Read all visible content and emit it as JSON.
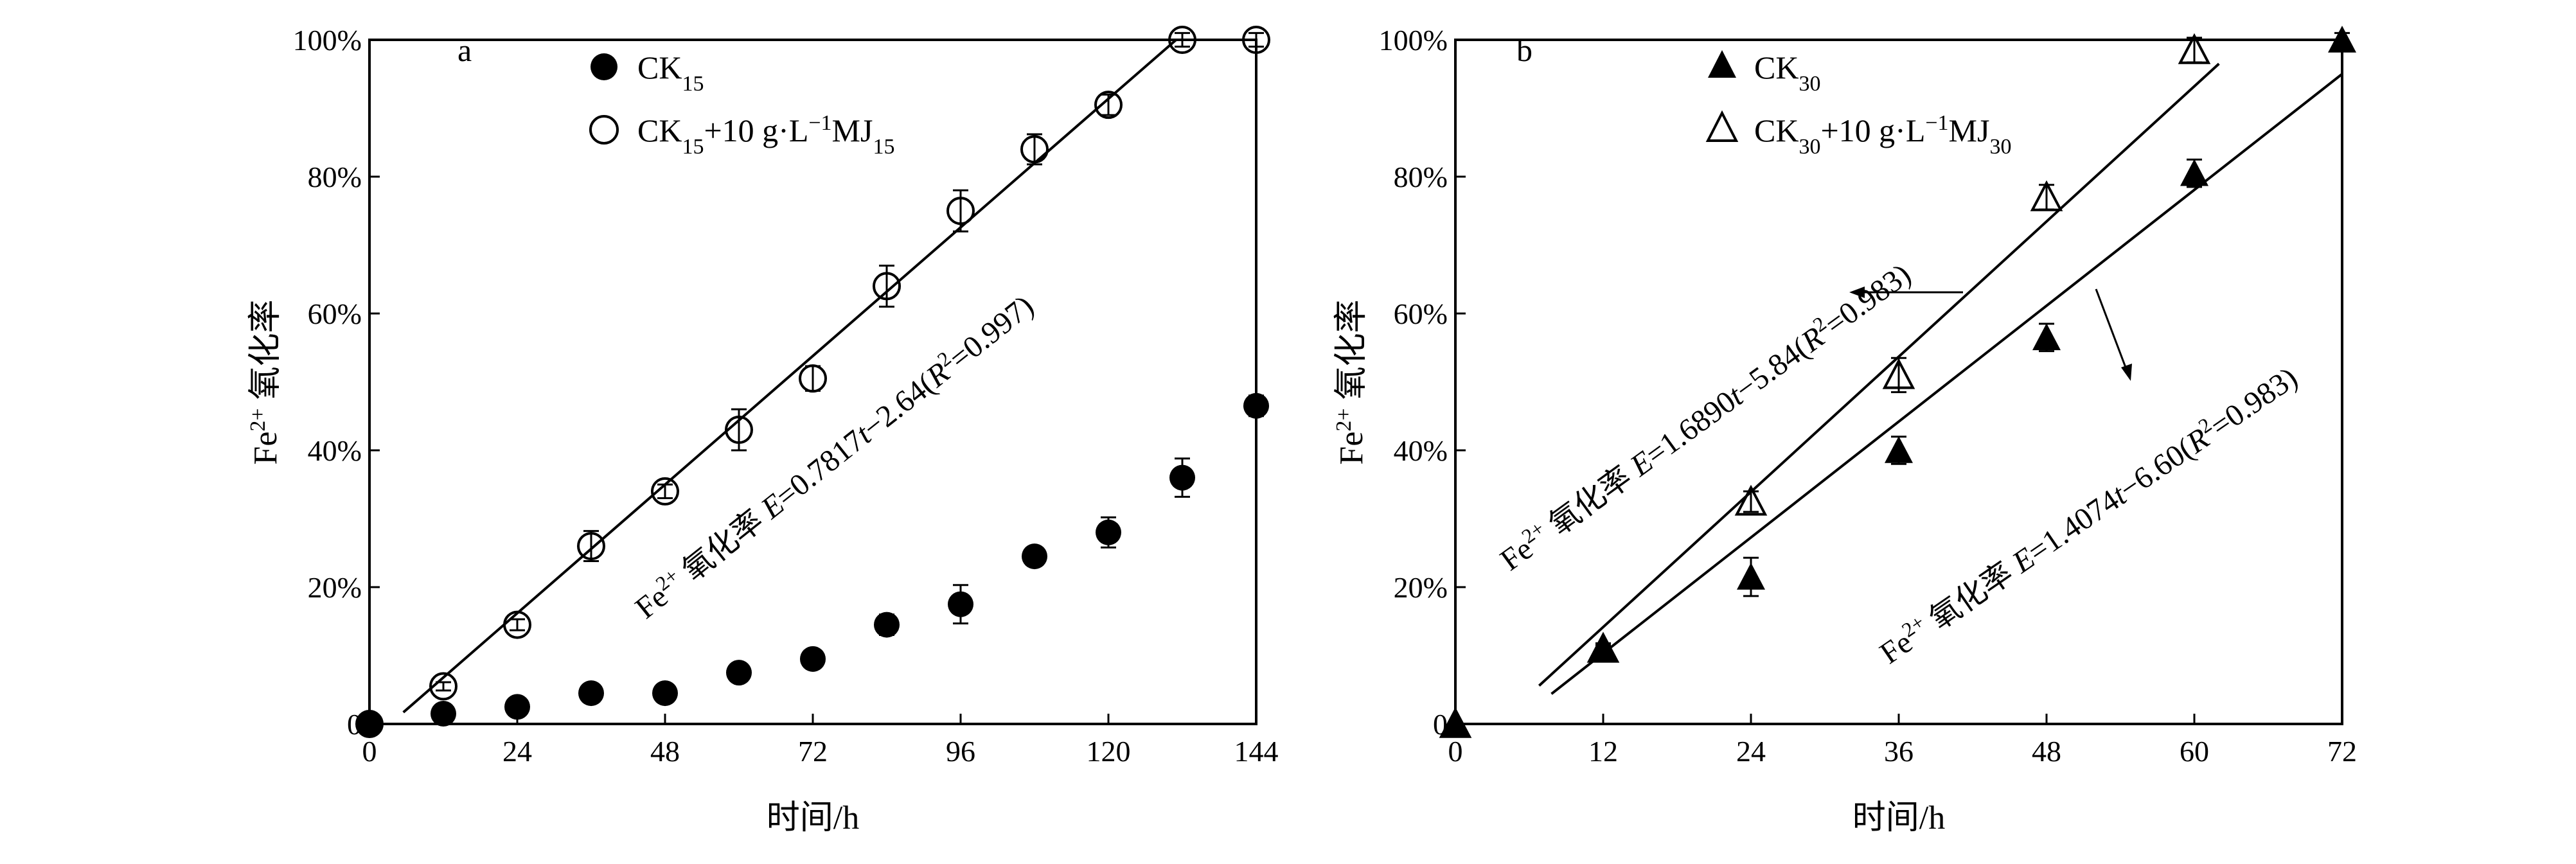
{
  "chart_data": [
    {
      "type": "scatter",
      "panel_label": "a",
      "xlabel": "时间/h",
      "ylabel": {
        "base": "Fe",
        "sup": "2+",
        "rest": " 氧化率"
      },
      "xlim": [
        0,
        144
      ],
      "ylim": [
        0,
        100
      ],
      "xticks": [
        "0",
        "24",
        "48",
        "72",
        "96",
        "120",
        "144"
      ],
      "xtick_values": [
        0,
        24,
        48,
        72,
        96,
        120,
        144
      ],
      "yticks": [
        "0",
        "20%",
        "40%",
        "60%",
        "80%",
        "100%"
      ],
      "ytick_values": [
        0,
        20,
        40,
        60,
        80,
        100
      ],
      "grid": false,
      "legend_position": "top-center",
      "series": [
        {
          "legend": {
            "base": "CK",
            "sub": "15",
            "rest": ""
          },
          "marker": "filled-circle",
          "x": [
            0,
            12,
            24,
            36,
            48,
            60,
            72,
            84,
            96,
            108,
            120,
            132,
            144
          ],
          "y": [
            0,
            1.5,
            2.5,
            4.5,
            4.5,
            7.5,
            9.5,
            14.5,
            17.5,
            24.5,
            28,
            36,
            46.5
          ],
          "err": [
            0,
            0.5,
            0.5,
            0.6,
            0.6,
            0.8,
            0.8,
            1.5,
            2.8,
            0.8,
            2.2,
            2.8,
            1.5
          ]
        },
        {
          "legend": {
            "base": "CK",
            "sub": "15",
            "rest": "+10 g·L",
            "sup": "−1",
            "rest2": "MJ",
            "sub2": "15"
          },
          "marker": "open-circle",
          "x": [
            0,
            12,
            24,
            36,
            48,
            60,
            72,
            84,
            96,
            108,
            120,
            132,
            144
          ],
          "y": [
            0,
            5.5,
            14.5,
            26,
            34,
            43,
            50.5,
            64,
            75,
            84,
            90.5,
            100,
            100
          ],
          "err": [
            0,
            0.6,
            0.8,
            2.2,
            1.0,
            3.0,
            1.8,
            3.0,
            3.0,
            2.2,
            1.5,
            1.0,
            1.0
          ]
        }
      ],
      "fit": {
        "segments": [
          [
            [
              5.5,
              1.7
            ],
            [
              131,
              100
            ]
          ],
          [
            [
              131,
              100
            ],
            [
              144,
              100
            ]
          ]
        ],
        "label": {
          "base": "Fe",
          "sup": "2+",
          "mid": " 氧化率 ",
          "var1": "E",
          "eq1": "=0.7817",
          "var2": "t",
          "eq2": "−2.64(",
          "var3": "R",
          "sup2": "2",
          "eq3": "=0.997)"
        }
      }
    },
    {
      "type": "scatter",
      "panel_label": "b",
      "xlabel": "时间/h",
      "ylabel": {
        "base": "Fe",
        "sup": "2+",
        "rest": " 氧化率"
      },
      "xlim": [
        0,
        72
      ],
      "ylim": [
        0,
        100
      ],
      "xticks": [
        "0",
        "12",
        "24",
        "36",
        "48",
        "60",
        "72"
      ],
      "xtick_values": [
        0,
        12,
        24,
        36,
        48,
        60,
        72
      ],
      "yticks": [
        "0",
        "20%",
        "40%",
        "60%",
        "80%",
        "100%"
      ],
      "ytick_values": [
        0,
        20,
        40,
        60,
        80,
        100
      ],
      "grid": false,
      "legend_position": "top-center",
      "series": [
        {
          "legend": {
            "base": "CK",
            "sub": "30",
            "rest": ""
          },
          "marker": "filled-triangle",
          "x": [
            0,
            12,
            24,
            36,
            48,
            60,
            72
          ],
          "y": [
            0,
            11,
            21.5,
            40,
            56.5,
            80.5,
            100
          ],
          "err": [
            0,
            0.5,
            2.8,
            2.0,
            2.0,
            2.0,
            1.0
          ]
        },
        {
          "legend": {
            "base": "CK",
            "sub": "30",
            "rest": "+10 g·L",
            "sup": "−1",
            "rest2": "MJ",
            "sub2": "30"
          },
          "marker": "open-triangle",
          "x": [
            0,
            12,
            24,
            36,
            48,
            60
          ],
          "y": [
            0,
            11,
            32.5,
            51,
            77,
            98.5
          ],
          "err": [
            0,
            0.8,
            1.5,
            2.5,
            1.8,
            1.8
          ]
        }
      ],
      "fits": [
        {
          "segment": [
            [
              6.8,
              5.6
            ],
            [
              62,
              96.5
            ]
          ],
          "label": {
            "base": "Fe",
            "sup": "2+",
            "mid": " 氧化率 ",
            "var1": "E",
            "eq1": "=1.6890",
            "var2": "t",
            "eq2": "−5.84(",
            "var3": "R",
            "sup2": "2",
            "eq3": "=0.983)"
          }
        },
        {
          "segment": [
            [
              7.8,
              4.4
            ],
            [
              72,
              95
            ]
          ],
          "label": {
            "base": "Fe",
            "sup": "2+",
            "mid": " 氧化率 ",
            "var1": "E",
            "eq1": "=1.4074",
            "var2": "t",
            "eq2": "−6.60(",
            "var3": "R",
            "sup2": "2",
            "eq3": "=0.983)"
          }
        }
      ]
    }
  ]
}
